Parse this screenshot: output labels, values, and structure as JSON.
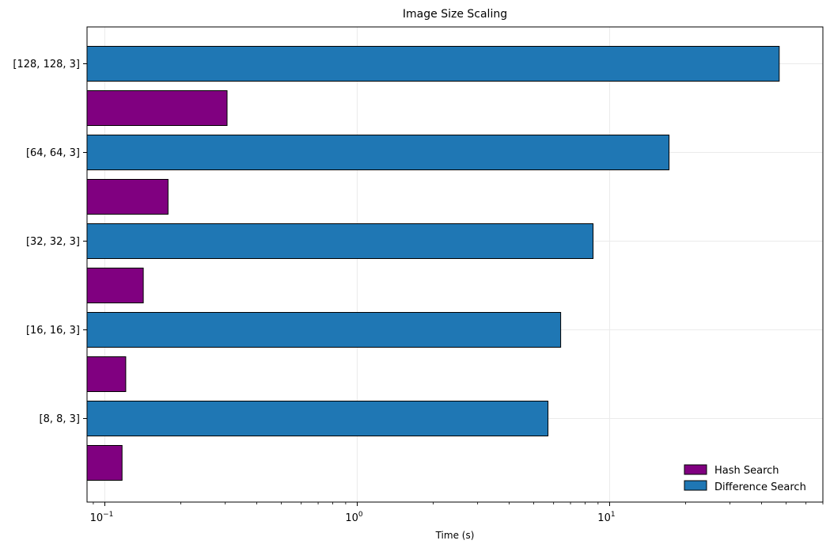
{
  "chart_data": {
    "type": "bar",
    "orientation": "horizontal",
    "title": "Image Size Scaling",
    "xlabel": "Time (s)",
    "ylabel": "",
    "xscale": "log",
    "xlim": [
      0.085,
      70
    ],
    "categories": [
      "[8, 8, 3]",
      "[16, 16, 3]",
      "[32, 32, 3]",
      "[64, 64, 3]",
      "[128, 128, 3]"
    ],
    "series": [
      {
        "name": "Hash Search",
        "color": "#800080",
        "values": [
          0.117,
          0.121,
          0.142,
          0.178,
          0.305
        ]
      },
      {
        "name": "Difference Search",
        "color": "#1f77b4",
        "values": [
          5.7,
          6.4,
          8.6,
          17.2,
          47.0
        ]
      }
    ],
    "x_ticks": [
      {
        "value": 0.1,
        "base": "10",
        "exp": "−1"
      },
      {
        "value": 1,
        "base": "10",
        "exp": "0"
      },
      {
        "value": 10,
        "base": "10",
        "exp": "1"
      }
    ],
    "grid": true,
    "legend_position": "lower-right"
  }
}
